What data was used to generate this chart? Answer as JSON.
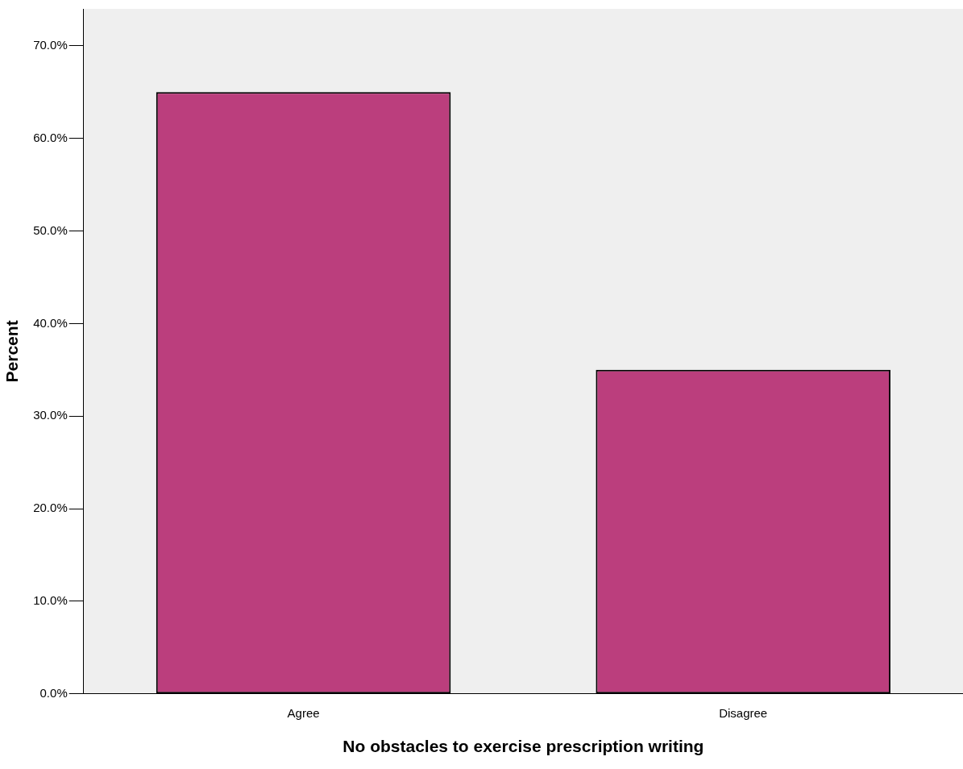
{
  "chart_data": {
    "type": "bar",
    "xlabel": "No obstacles to exercise prescription writing",
    "ylabel": "Percent",
    "categories": [
      "Agree",
      "Disagree"
    ],
    "values": [
      65.0,
      35.0
    ],
    "color": "#bb3e7d",
    "ylim": [
      0,
      74
    ],
    "yticks": [
      {
        "value": 0,
        "label": "0.0%"
      },
      {
        "value": 10,
        "label": "10.0%"
      },
      {
        "value": 20,
        "label": "20.0%"
      },
      {
        "value": 30,
        "label": "30.0%"
      },
      {
        "value": 40,
        "label": "40.0%"
      },
      {
        "value": 50,
        "label": "50.0%"
      },
      {
        "value": 60,
        "label": "60.0%"
      },
      {
        "value": 70,
        "label": "70.0%"
      }
    ],
    "grid": false,
    "legend": false
  }
}
